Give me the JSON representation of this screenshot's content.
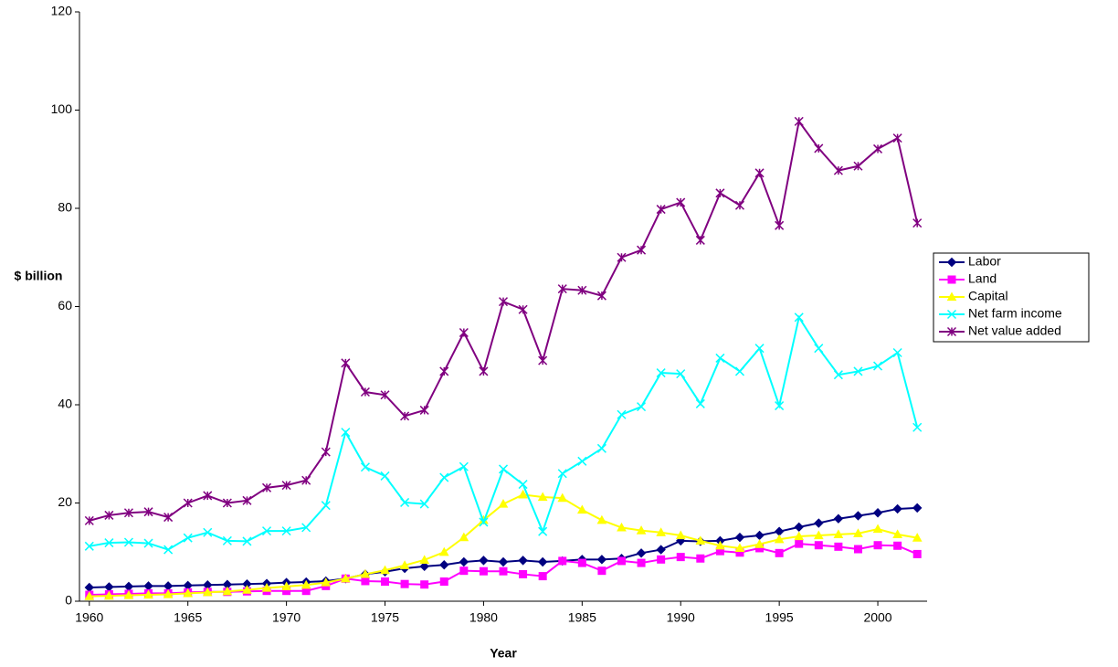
{
  "chart_data": {
    "type": "line",
    "xlabel": "Year",
    "ylabel": "$ billion",
    "x": [
      1960,
      1961,
      1962,
      1963,
      1964,
      1965,
      1966,
      1967,
      1968,
      1969,
      1970,
      1971,
      1972,
      1973,
      1974,
      1975,
      1976,
      1977,
      1978,
      1979,
      1980,
      1981,
      1982,
      1983,
      1984,
      1985,
      1986,
      1987,
      1988,
      1989,
      1990,
      1991,
      1992,
      1993,
      1994,
      1995,
      1996,
      1997,
      1998,
      1999,
      2000,
      2001,
      2002
    ],
    "xlim": [
      1959.5,
      2002.5
    ],
    "xticks": [
      1960,
      1965,
      1970,
      1975,
      1980,
      1985,
      1990,
      1995,
      2000
    ],
    "ylim": [
      0,
      120
    ],
    "yticks": [
      0,
      20,
      40,
      60,
      80,
      100,
      120
    ],
    "grid": false,
    "legend": "right",
    "series": [
      {
        "name": "Labor",
        "color": "#000080",
        "marker": "diamond",
        "values": [
          2.8,
          2.9,
          3.0,
          3.1,
          3.1,
          3.2,
          3.3,
          3.4,
          3.5,
          3.6,
          3.8,
          3.9,
          4.1,
          4.6,
          5.5,
          6.0,
          6.7,
          7.1,
          7.4,
          8.0,
          8.3,
          8.0,
          8.3,
          8.0,
          8.2,
          8.5,
          8.5,
          8.7,
          9.8,
          10.5,
          12.3,
          12.2,
          12.3,
          13.0,
          13.4,
          14.2,
          15.1,
          15.9,
          16.8,
          17.4,
          18.0,
          18.8,
          19.0
        ]
      },
      {
        "name": "Land",
        "color": "#ff00ff",
        "marker": "square",
        "values": [
          1.3,
          1.4,
          1.5,
          1.6,
          1.6,
          1.8,
          1.9,
          1.9,
          2.0,
          2.1,
          2.1,
          2.1,
          3.1,
          4.6,
          4.1,
          4.0,
          3.5,
          3.4,
          4.0,
          6.2,
          6.1,
          6.1,
          5.5,
          5.1,
          8.2,
          7.8,
          6.2,
          8.2,
          7.8,
          8.5,
          9.0,
          8.7,
          10.2,
          9.9,
          10.8,
          9.8,
          11.7,
          11.4,
          11.1,
          10.6,
          11.4,
          11.3,
          9.6
        ]
      },
      {
        "name": "Capital",
        "color": "#ffff00",
        "marker": "triangle",
        "values": [
          1.0,
          1.1,
          1.2,
          1.3,
          1.4,
          1.6,
          1.8,
          2.0,
          2.3,
          2.7,
          3.0,
          3.3,
          3.8,
          4.6,
          5.5,
          6.3,
          7.3,
          8.4,
          10.0,
          13.0,
          16.5,
          19.8,
          21.7,
          21.2,
          21.0,
          18.6,
          16.5,
          15.0,
          14.4,
          14.0,
          13.4,
          12.3,
          11.3,
          10.8,
          11.6,
          12.6,
          13.2,
          13.4,
          13.6,
          13.8,
          14.7,
          13.6,
          12.9
        ]
      },
      {
        "name": "Net farm income",
        "color": "#00ffff",
        "marker": "x",
        "values": [
          11.2,
          11.9,
          12.0,
          11.8,
          10.5,
          12.9,
          14.0,
          12.3,
          12.2,
          14.3,
          14.3,
          15.0,
          19.5,
          34.4,
          27.3,
          25.5,
          20.1,
          19.8,
          25.2,
          27.4,
          16.1,
          26.9,
          23.8,
          14.2,
          26.0,
          28.5,
          31.1,
          38.0,
          39.6,
          46.5,
          46.3,
          40.2,
          49.5,
          46.8,
          51.5,
          39.8,
          57.8,
          51.5,
          46.1,
          46.8,
          47.9,
          50.6,
          35.4
        ]
      },
      {
        "name": "Net value added",
        "color": "#800080",
        "marker": "star",
        "values": [
          16.4,
          17.5,
          18.0,
          18.2,
          17.1,
          20.0,
          21.5,
          20.0,
          20.5,
          23.1,
          23.6,
          24.6,
          30.4,
          48.5,
          42.6,
          42.0,
          37.7,
          38.9,
          46.8,
          54.7,
          46.8,
          61.0,
          59.4,
          49.0,
          63.6,
          63.3,
          62.2,
          70.0,
          71.5,
          79.8,
          81.2,
          73.5,
          83.1,
          80.6,
          87.2,
          76.5,
          97.7,
          92.2,
          87.7,
          88.6,
          92.1,
          94.3,
          77.0
        ]
      }
    ]
  }
}
